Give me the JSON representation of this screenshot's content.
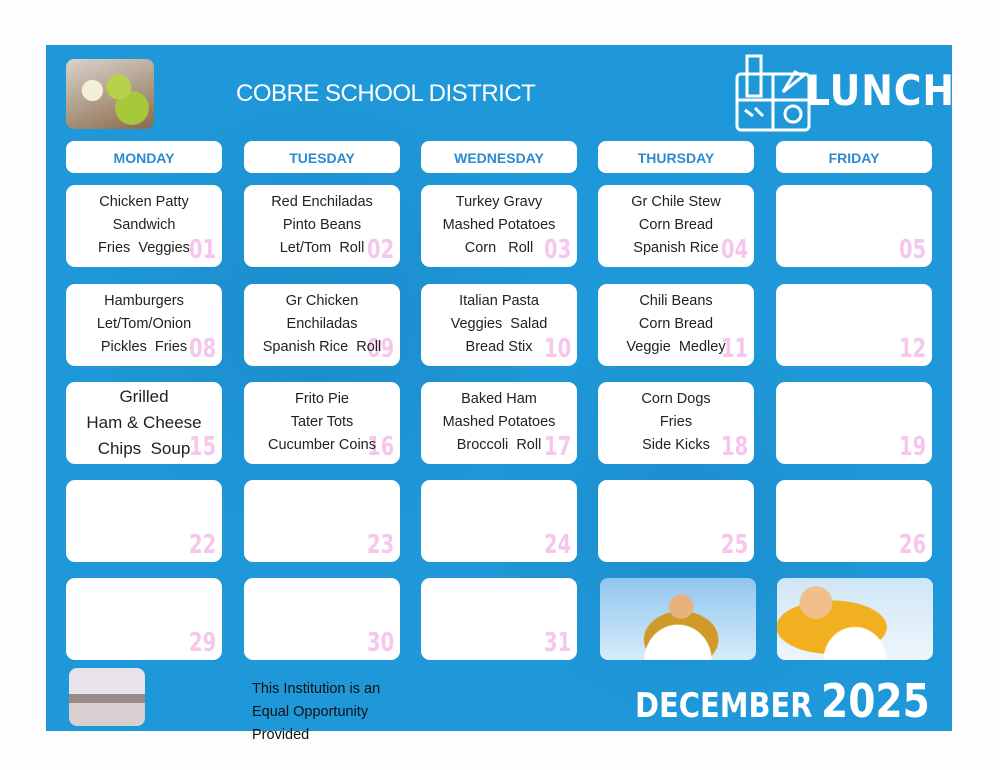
{
  "header": {
    "title": "COBRE SCHOOL DISTRICT",
    "logo_text": "LUNCH"
  },
  "days": [
    "MONDAY",
    "TUESDAY",
    "WEDNESDAY",
    "THURSDAY",
    "FRIDAY"
  ],
  "weeks": [
    [
      {
        "day": "01",
        "menu": [
          "Chicken Patty",
          "Sandwich",
          "Fries  Veggies"
        ]
      },
      {
        "day": "02",
        "menu": [
          "Red Enchiladas",
          "Pinto Beans",
          "Let/Tom  Roll"
        ]
      },
      {
        "day": "03",
        "menu": [
          "Turkey Gravy",
          "Mashed Potatoes",
          "Corn   Roll"
        ]
      },
      {
        "day": "04",
        "menu": [
          "Gr Chile Stew",
          "Corn Bread",
          "Spanish Rice"
        ]
      },
      {
        "day": "05",
        "menu": []
      }
    ],
    [
      {
        "day": "08",
        "menu": [
          "Hamburgers",
          "Let/Tom/Onion",
          "Pickles  Fries"
        ]
      },
      {
        "day": "09",
        "menu": [
          "Gr Chicken",
          "Enchiladas",
          "Spanish Rice  Roll"
        ]
      },
      {
        "day": "10",
        "menu": [
          "Italian Pasta",
          "Veggies  Salad",
          "Bread Stix"
        ]
      },
      {
        "day": "11",
        "menu": [
          "Chili Beans",
          "Corn Bread",
          "Veggie  Medley"
        ]
      },
      {
        "day": "12",
        "menu": []
      }
    ],
    [
      {
        "day": "15",
        "menu": [
          "Grilled",
          "Ham & Cheese",
          "Chips  Soup"
        ]
      },
      {
        "day": "16",
        "menu": [
          "Frito Pie",
          "Tater Tots",
          "Cucumber Coins"
        ]
      },
      {
        "day": "17",
        "menu": [
          "Baked Ham",
          "Mashed Potatoes",
          "Broccoli  Roll"
        ]
      },
      {
        "day": "18",
        "menu": [
          "Corn Dogs",
          "Fries",
          "Side Kicks"
        ]
      },
      {
        "day": "19",
        "menu": []
      }
    ],
    [
      {
        "day": "22",
        "menu": []
      },
      {
        "day": "23",
        "menu": []
      },
      {
        "day": "24",
        "menu": []
      },
      {
        "day": "25",
        "menu": []
      },
      {
        "day": "26",
        "menu": []
      }
    ],
    [
      {
        "day": "29",
        "menu": []
      },
      {
        "day": "30",
        "menu": []
      },
      {
        "day": "31",
        "menu": []
      }
    ]
  ],
  "footer": {
    "notice": [
      "This Institution is an",
      "Equal Opportunity",
      "Provided"
    ],
    "month": "DECEMBER",
    "year": "2025"
  },
  "colors": {
    "background": "#1e98d8",
    "day_number": "#f6c6ec",
    "header_text": "#2a8bd0"
  }
}
